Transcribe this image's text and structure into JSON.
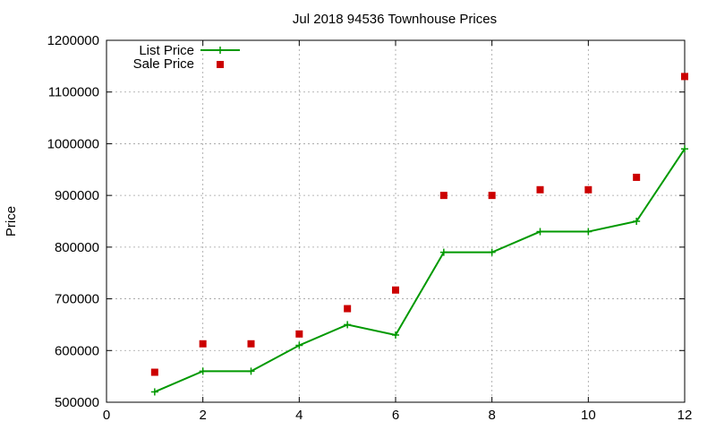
{
  "chart_data": {
    "type": "line",
    "title": "Jul 2018 94536 Townhouse Prices",
    "ylabel": "Price",
    "xlabel": "",
    "xlim": [
      0,
      12
    ],
    "ylim": [
      500000,
      1200000
    ],
    "xticks": [
      0,
      2,
      4,
      6,
      8,
      10,
      12
    ],
    "yticks": [
      500000,
      600000,
      700000,
      800000,
      900000,
      1000000,
      1100000,
      1200000
    ],
    "grid": true,
    "legend_position": "top-left",
    "series": [
      {
        "name": "List Price",
        "style": "line+cross",
        "color": "#009900",
        "x": [
          1,
          2,
          3,
          4,
          5,
          6,
          7,
          8,
          9,
          10,
          11,
          12
        ],
        "y": [
          520000,
          560000,
          560000,
          610000,
          650000,
          630000,
          790000,
          790000,
          830000,
          830000,
          850000,
          990000
        ]
      },
      {
        "name": "Sale Price",
        "style": "square",
        "color": "#cc0000",
        "x": [
          1,
          2,
          3,
          4,
          5,
          6,
          7,
          8,
          9,
          10,
          11,
          12
        ],
        "y": [
          558000,
          613000,
          613000,
          632000,
          681000,
          717000,
          900000,
          900000,
          911000,
          911000,
          935000,
          1130000
        ]
      }
    ]
  }
}
